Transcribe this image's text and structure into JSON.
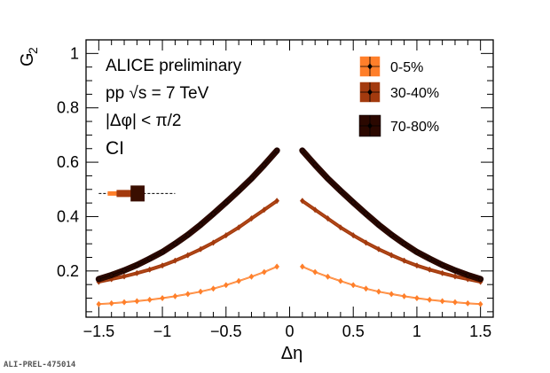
{
  "chart_data": {
    "type": "scatter",
    "xlabel": "Δη",
    "ylabel": "G",
    "ylabel_sub": "2",
    "xlim": [
      -1.6,
      1.6
    ],
    "ylim": [
      0.03,
      1.05
    ],
    "x_ticks": [
      -1.5,
      -1,
      -0.5,
      0,
      0.5,
      1,
      1.5
    ],
    "x_tick_labels": [
      "−1.5",
      "−1",
      "−0.5",
      "0",
      "0.5",
      "1",
      "1.5"
    ],
    "y_ticks": [
      0.2,
      0.4,
      0.6,
      0.8,
      1
    ],
    "y_tick_labels": [
      "0.2",
      "0.4",
      "0.6",
      "0.8",
      "1"
    ],
    "annotations": [
      "ALICE preliminary",
      "pp  √s = 7 TeV",
      "|Δφ| < π/2",
      "CI"
    ],
    "legend_placement": "top-right",
    "x": [
      -1.5,
      -1.4,
      -1.3,
      -1.2,
      -1.1,
      -1.0,
      -0.9,
      -0.8,
      -0.7,
      -0.6,
      -0.5,
      -0.4,
      -0.3,
      -0.2,
      -0.1,
      0.1,
      0.2,
      0.3,
      0.4,
      0.5,
      0.6,
      0.7,
      0.8,
      0.9,
      1.0,
      1.1,
      1.2,
      1.3,
      1.4,
      1.5
    ],
    "series": [
      {
        "name": "0-5%",
        "color": "#ff7f2a",
        "values": [
          0.078,
          0.081,
          0.085,
          0.089,
          0.094,
          0.1,
          0.107,
          0.115,
          0.124,
          0.135,
          0.148,
          0.163,
          0.179,
          0.196,
          0.216,
          0.216,
          0.196,
          0.179,
          0.163,
          0.148,
          0.135,
          0.124,
          0.115,
          0.107,
          0.1,
          0.094,
          0.089,
          0.085,
          0.081,
          0.078
        ]
      },
      {
        "name": "30-40%",
        "color": "#a33a0e",
        "values": [
          0.16,
          0.17,
          0.18,
          0.192,
          0.205,
          0.22,
          0.238,
          0.258,
          0.28,
          0.304,
          0.331,
          0.36,
          0.393,
          0.425,
          0.458,
          0.458,
          0.425,
          0.393,
          0.36,
          0.331,
          0.304,
          0.28,
          0.258,
          0.238,
          0.22,
          0.205,
          0.192,
          0.18,
          0.17,
          0.16
        ]
      },
      {
        "name": "70-80%",
        "color": "#2b0800",
        "values": [
          0.17,
          0.185,
          0.202,
          0.222,
          0.245,
          0.27,
          0.3,
          0.333,
          0.37,
          0.41,
          0.452,
          0.495,
          0.54,
          0.59,
          0.643,
          0.643,
          0.59,
          0.54,
          0.495,
          0.452,
          0.41,
          0.37,
          0.333,
          0.3,
          0.27,
          0.245,
          0.222,
          0.202,
          0.185,
          0.17
        ]
      }
    ],
    "ref_marker": {
      "x": -1.2,
      "y": 0.485,
      "x_range": [
        -1.5,
        -0.9
      ]
    },
    "footer": "ALI-PREL-475014"
  }
}
